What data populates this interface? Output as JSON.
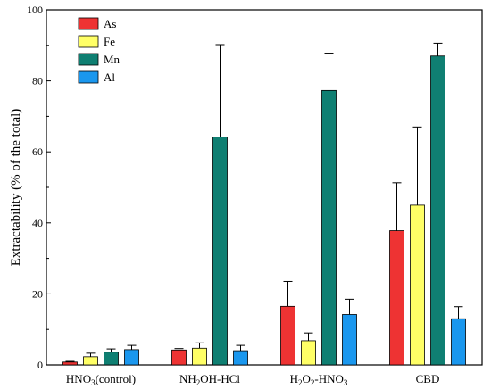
{
  "chart_data": {
    "type": "bar",
    "title": "",
    "xlabel": "",
    "ylabel": "Extractability (% of the total)",
    "ylim": [
      0,
      100
    ],
    "yticks": [
      0,
      20,
      40,
      60,
      80,
      100
    ],
    "legend_position": "top-left",
    "categories": [
      {
        "base": "HNO",
        "sub": "3",
        "rest": "(control)"
      },
      {
        "text": "NH₂OH-HCl"
      },
      {
        "text": "H₂O₂-HNO₃"
      },
      {
        "text": "CBD"
      }
    ],
    "category_labels_plain": [
      "HNO3(control)",
      "NH2OH-HCl",
      "H2O2-HNO3",
      "CBD"
    ],
    "series": [
      {
        "name": "As",
        "color": "#ee3333",
        "values": [
          0.8,
          4.2,
          16.5,
          37.8
        ],
        "errors": [
          0.2,
          0.4,
          7.0,
          13.5
        ]
      },
      {
        "name": "Fe",
        "color": "#ffff66",
        "values": [
          2.3,
          4.7,
          6.8,
          45.0
        ],
        "errors": [
          1.0,
          1.5,
          2.2,
          22.0
        ]
      },
      {
        "name": "Mn",
        "color": "#0f7f72",
        "values": [
          3.6,
          64.2,
          77.3,
          87.0
        ],
        "errors": [
          0.9,
          26.0,
          10.5,
          3.6
        ]
      },
      {
        "name": "Al",
        "color": "#1a97ee",
        "values": [
          4.3,
          4.0,
          14.2,
          13.0
        ],
        "errors": [
          1.2,
          1.5,
          4.3,
          3.4
        ]
      }
    ]
  }
}
